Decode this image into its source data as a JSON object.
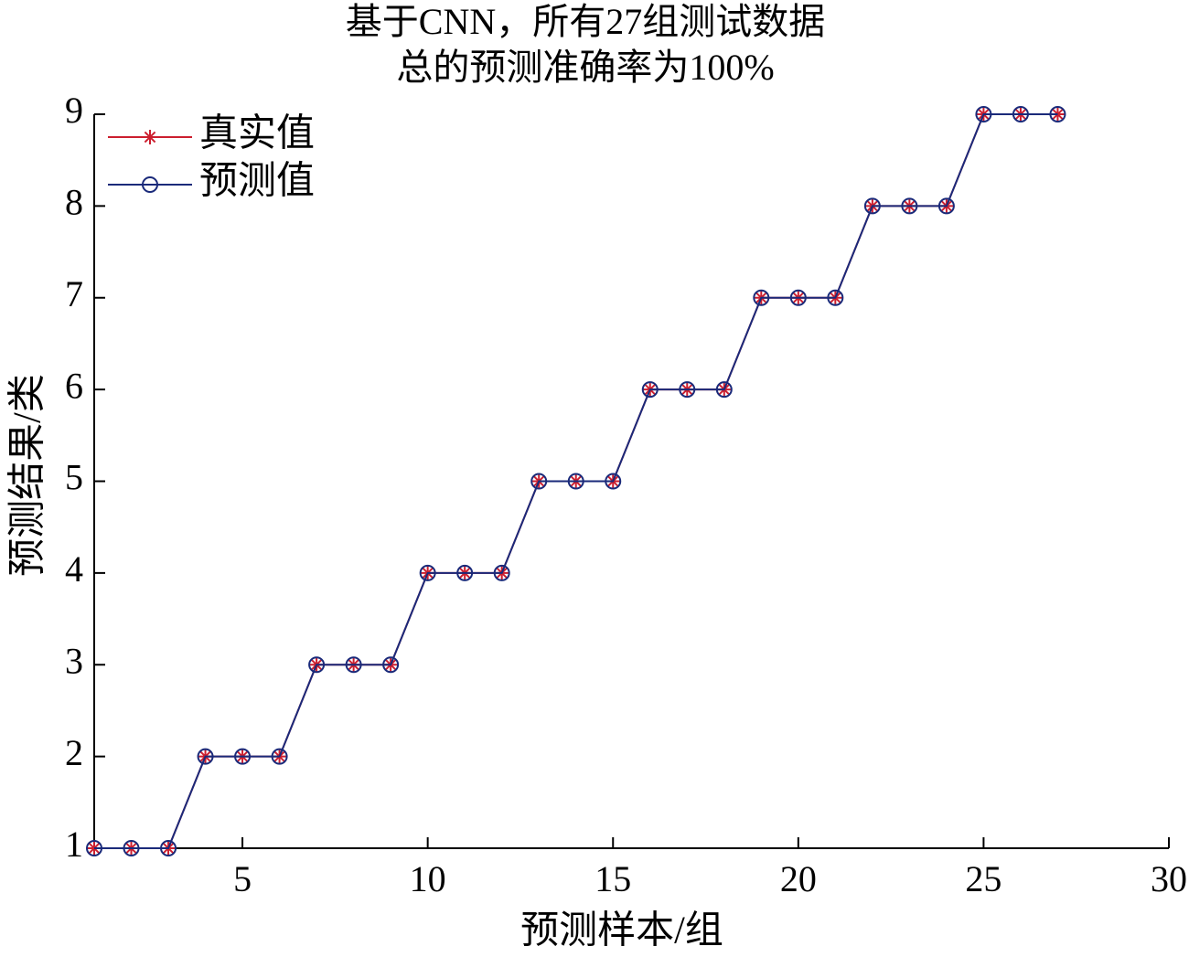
{
  "chart_data": {
    "type": "line",
    "title": "基于CNN，所有27组测试数据",
    "subtitle": "总的预测准确率为100%",
    "x_label": "预测样本/组",
    "y_label": "预测结果/类",
    "x": [
      1,
      2,
      3,
      4,
      5,
      6,
      7,
      8,
      9,
      10,
      11,
      12,
      13,
      14,
      15,
      16,
      17,
      18,
      19,
      20,
      21,
      22,
      23,
      24,
      25,
      26,
      27
    ],
    "series": [
      {
        "name": "真实值",
        "color": "#cc1f2f",
        "marker": "star",
        "values": [
          1,
          1,
          1,
          2,
          2,
          2,
          3,
          3,
          3,
          4,
          4,
          4,
          5,
          5,
          5,
          6,
          6,
          6,
          7,
          7,
          7,
          8,
          8,
          8,
          9,
          9,
          9
        ]
      },
      {
        "name": "预测值",
        "color": "#1a2a7a",
        "marker": "circle",
        "values": [
          1,
          1,
          1,
          2,
          2,
          2,
          3,
          3,
          3,
          4,
          4,
          4,
          5,
          5,
          5,
          6,
          6,
          6,
          7,
          7,
          7,
          8,
          8,
          8,
          9,
          9,
          9
        ]
      }
    ],
    "xlim": [
      1,
      30
    ],
    "ylim": [
      1,
      9
    ],
    "xticks": [
      5,
      10,
      15,
      20,
      25,
      30
    ],
    "yticks": [
      1,
      2,
      3,
      4,
      5,
      6,
      7,
      8,
      9
    ],
    "grid": false,
    "legend": "upper-left"
  }
}
